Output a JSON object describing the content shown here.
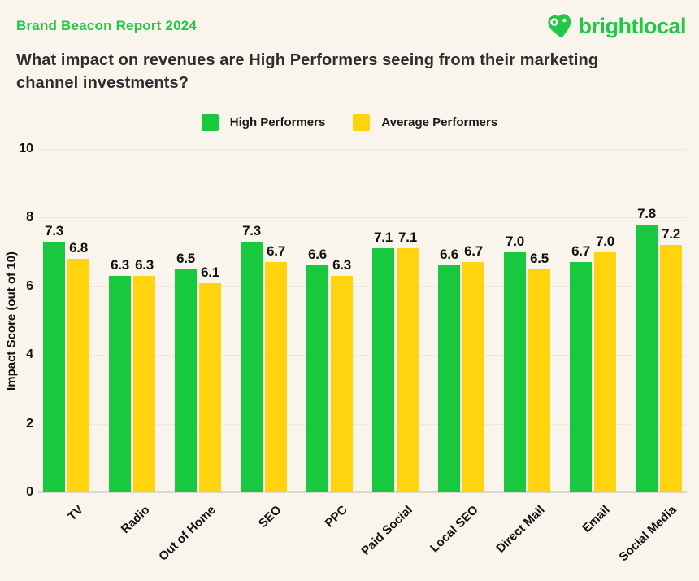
{
  "header": {
    "report_label": "Brand Beacon Report 2024",
    "logo_text": "brightlocal"
  },
  "title": "What impact on revenues are High Performers seeing from their marketing channel investments?",
  "legend": [
    {
      "label": "High Performers",
      "color": "#18C940"
    },
    {
      "label": "Average Performers",
      "color": "#FFD30D"
    }
  ],
  "colors": {
    "background": "#F9F5EC",
    "brand_green": "#1FC947",
    "bar_green": "#18C940",
    "bar_yellow": "#FFD30D",
    "text_dark": "#2E2E2E"
  },
  "chart_data": {
    "type": "bar",
    "title": "What impact on revenues are High Performers seeing from their marketing channel investments?",
    "categories": [
      "TV",
      "Radio",
      "Out of Home",
      "SEO",
      "PPC",
      "Paid Social",
      "Local SEO",
      "Direct Mail",
      "Email",
      "Social Media"
    ],
    "series": [
      {
        "name": "High Performers",
        "color": "#18C940",
        "values": [
          7.3,
          6.3,
          6.5,
          7.3,
          6.6,
          7.1,
          6.6,
          7.0,
          6.7,
          7.8
        ]
      },
      {
        "name": "Average Performers",
        "color": "#FFD30D",
        "values": [
          6.8,
          6.3,
          6.1,
          6.7,
          6.3,
          7.1,
          6.7,
          6.5,
          7.0,
          7.2
        ]
      }
    ],
    "xlabel": "",
    "ylabel": "Impact Score (out of 10)",
    "ylim": [
      0,
      10
    ],
    "yticks": [
      0,
      2,
      4,
      6,
      8,
      10
    ],
    "grid": true,
    "legend_position": "top",
    "value_labels": true
  }
}
